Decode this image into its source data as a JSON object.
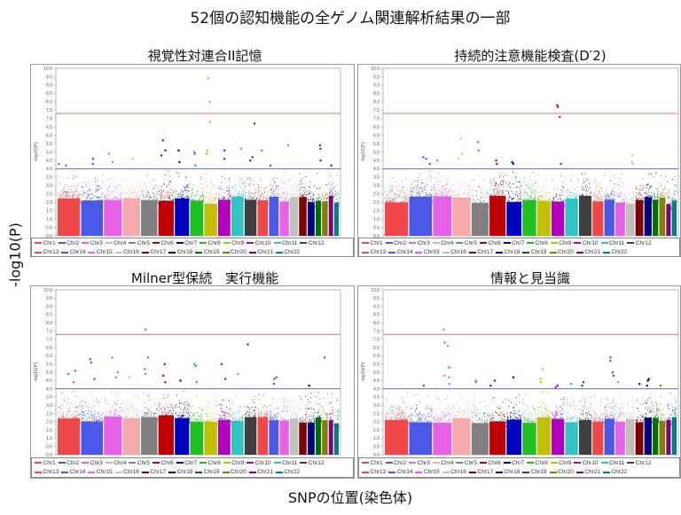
{
  "title": "52個の認知機能の全ゲノム関連解析結果の一部",
  "ylabel_main": "-log10(P)",
  "xlabel_main": "SNPの位置(染色体)",
  "chromosome_colors": {
    "Chr1": "#f04848",
    "Chr2": "#4a58e8",
    "Chr3": "#e860e8",
    "Chr4": "#f4aaaa",
    "Chr5": "#808080",
    "Chr6": "#c00000",
    "Chr7": "#0000c0",
    "Chr8": "#20c020",
    "Chr9": "#c0c000",
    "Chr10": "#b000c0",
    "Chr11": "#30c4c4",
    "Chr12": "#404040",
    "Chr13": "#f04848",
    "Chr14": "#4a58e8",
    "Chr15": "#e860e8",
    "Chr16": "#c0c0c0",
    "Chr17": "#800000",
    "Chr18": "#000080",
    "Chr19": "#007000",
    "Chr20": "#808000",
    "Chr21": "#800080",
    "Chr22": "#008080"
  },
  "legend_rows": [
    [
      "Chr1",
      "Chr2",
      "Chr3",
      "Chr4",
      "Chr5",
      "Chr6",
      "Chr7",
      "Chr8",
      "Chr9",
      "Chr10",
      "Chr11",
      "Chr12"
    ],
    [
      "Chr13",
      "Chr14",
      "Chr15",
      "Chr16",
      "Chr17",
      "Chr18",
      "Chr19",
      "Chr20",
      "Chr21",
      "Chr22"
    ]
  ],
  "chart_data": [
    {
      "type": "scatter",
      "title": "視覚性対連合II記憶",
      "ylabel": "-log10(P)",
      "ylim": [
        0,
        10
      ],
      "yticks": [
        "0.0",
        "0.5",
        "1.0",
        "1.5",
        "2.0",
        "2.5",
        "3.0",
        "3.5",
        "4.0",
        "4.5",
        "5.0",
        "5.5",
        "6.0",
        "6.5",
        "7.0",
        "7.5",
        "8.0",
        "8.5",
        "9.0",
        "9.5",
        "10.0"
      ],
      "thresholds": [
        {
          "value": 7.3,
          "color": "#c87878"
        },
        {
          "value": 4.0,
          "color": "#6a6ab0"
        }
      ],
      "top_points": {
        "Chr1": [
          4.3,
          4.2
        ],
        "Chr2": [
          4.6,
          4.3
        ],
        "Chr3": [
          4.9,
          4.4
        ],
        "Chr4": [
          4.6
        ],
        "Chr6": [
          5.7,
          5.1,
          4.8
        ],
        "Chr7": [
          5.1,
          4.4
        ],
        "Chr8": [
          5.0,
          4.9,
          4.2
        ],
        "Chr9": [
          9.4,
          8.0,
          6.8,
          5.1,
          4.9
        ],
        "Chr10": [
          5.1,
          4.6
        ],
        "Chr11": [
          5.2
        ],
        "Chr12": [
          6.7,
          4.7,
          4.5
        ],
        "Chr13": [
          5.1
        ],
        "Chr14": [
          4.2
        ],
        "Chr15": [
          5.4
        ],
        "Chr19": [
          5.4,
          5.2,
          4.5
        ],
        "Chr21": [
          4.2
        ]
      }
    },
    {
      "type": "scatter",
      "title": "持続的注意機能検査(D′2)",
      "ylabel": "-log10(P)",
      "ylim": [
        0,
        10
      ],
      "yticks": [
        "0.0",
        "0.5",
        "1.0",
        "1.5",
        "2.0",
        "2.5",
        "3.0",
        "3.5",
        "4.0",
        "4.5",
        "5.0",
        "5.5",
        "6.0",
        "6.5",
        "7.0",
        "7.5",
        "8.0",
        "8.5",
        "9.0",
        "9.5",
        "10.0"
      ],
      "thresholds": [
        {
          "value": 7.3,
          "color": "#c87878"
        },
        {
          "value": 4.0,
          "color": "#6a6ab0"
        }
      ],
      "top_points": {
        "Chr2": [
          4.7,
          4.6,
          4.3
        ],
        "Chr3": [
          4.5
        ],
        "Chr4": [
          5.8,
          4.9,
          4.6
        ],
        "Chr5": [
          5.6,
          5.1
        ],
        "Chr6": [
          4.5,
          4.3
        ],
        "Chr7": [
          4.4,
          4.3
        ],
        "Chr10": [
          7.8,
          7.7,
          7.1,
          4.3
        ],
        "Chr16": [
          4.8,
          4.4,
          4.3
        ]
      }
    },
    {
      "type": "scatter",
      "title": "Milner型保続　実行機能",
      "ylabel": "-log10(P)",
      "ylim": [
        0,
        10
      ],
      "yticks": [
        "0.0",
        "0.5",
        "1.0",
        "1.5",
        "2.0",
        "2.5",
        "3.0",
        "3.5",
        "4.0",
        "4.5",
        "5.0",
        "5.5",
        "6.0",
        "6.5",
        "7.0",
        "7.5",
        "8.0",
        "8.5",
        "9.0",
        "9.5",
        "10.0"
      ],
      "thresholds": [
        {
          "value": 7.3,
          "color": "#c87878"
        },
        {
          "value": 4.0,
          "color": "#6a6ab0"
        }
      ],
      "top_points": {
        "Chr1": [
          5.1,
          4.9,
          4.4
        ],
        "Chr2": [
          5.8,
          5.6,
          4.6
        ],
        "Chr3": [
          5.9,
          5.0,
          4.7
        ],
        "Chr4": [
          4.7
        ],
        "Chr5": [
          7.6,
          5.9,
          5.2,
          4.9
        ],
        "Chr6": [
          5.5,
          4.8,
          4.4
        ],
        "Chr7": [
          4.5
        ],
        "Chr8": [
          5.5,
          5.4,
          4.4
        ],
        "Chr10": [
          5.5,
          4.6
        ],
        "Chr11": [
          4.9
        ],
        "Chr12": [
          6.7
        ],
        "Chr14": [
          4.7,
          4.6,
          4.3
        ],
        "Chr18": [
          4.2
        ],
        "Chr20": [
          5.9
        ]
      }
    },
    {
      "type": "scatter",
      "title": "情報と見当識",
      "ylabel": "-log10(P)",
      "ylim": [
        0,
        10
      ],
      "yticks": [
        "0.0",
        "0.5",
        "1.0",
        "1.5",
        "2.0",
        "2.5",
        "3.0",
        "3.5",
        "4.0",
        "4.5",
        "5.0",
        "5.5",
        "6.0",
        "6.5",
        "7.0",
        "7.5",
        "8.0",
        "8.5",
        "9.0",
        "9.5",
        "10.0"
      ],
      "thresholds": [
        {
          "value": 7.3,
          "color": "#c87878"
        },
        {
          "value": 4.0,
          "color": "#6a6ab0"
        }
      ],
      "top_points": {
        "Chr2": [
          4.2
        ],
        "Chr3": [
          7.6,
          6.8,
          6.6,
          5.3,
          5.3,
          4.8,
          4.7,
          4.3
        ],
        "Chr5": [
          4.5,
          4.4
        ],
        "Chr6": [
          4.5,
          4.2
        ],
        "Chr7": [
          4.7
        ],
        "Chr9": [
          5.2,
          4.6,
          4.4
        ],
        "Chr10": [
          4.2,
          4.1
        ],
        "Chr11": [
          4.3
        ],
        "Chr12": [
          4.4,
          4.2
        ],
        "Chr14": [
          5.9,
          5.7,
          5.0,
          4.8
        ],
        "Chr15": [
          4.4
        ],
        "Chr17": [
          4.3
        ],
        "Chr18": [
          4.6,
          4.5,
          4.2
        ],
        "Chr20": [
          4.2
        ]
      }
    }
  ]
}
